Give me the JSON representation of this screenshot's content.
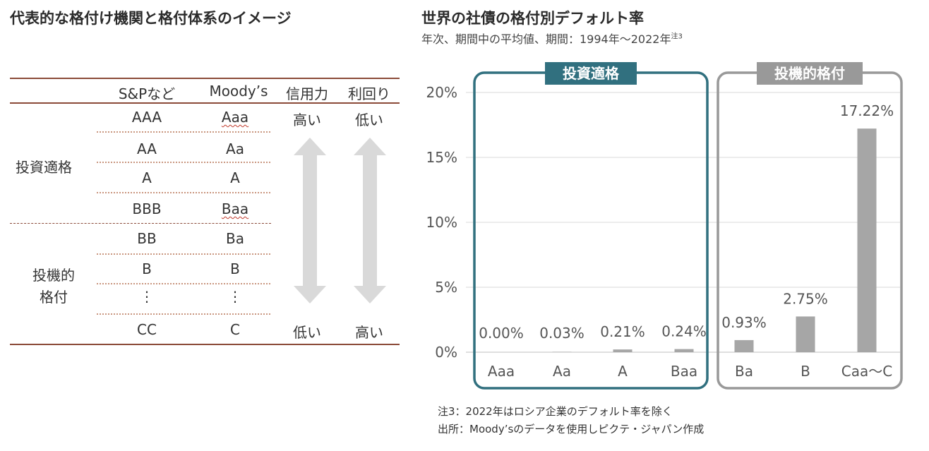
{
  "left": {
    "title": "代表的な格付け機関と格付体系のイメージ",
    "headers": {
      "sp": "S&Pなど",
      "moodys": "Moody’s",
      "credit": "信用力",
      "yield": "利回り"
    },
    "groups": {
      "investment": "投資適格",
      "speculative_1": "投機的",
      "speculative_2": "格付"
    },
    "rows": [
      {
        "sp": "AAA",
        "moodys": "Aaa"
      },
      {
        "sp": "AA",
        "moodys": "Aa"
      },
      {
        "sp": "A",
        "moodys": "A"
      },
      {
        "sp": "BBB",
        "moodys": "Baa"
      },
      {
        "sp": "BB",
        "moodys": "Ba"
      },
      {
        "sp": "B",
        "moodys": "B"
      },
      {
        "sp": "⋮",
        "moodys": "⋮"
      },
      {
        "sp": "CC",
        "moodys": "C"
      }
    ],
    "credit_top": "高い",
    "credit_bottom": "低い",
    "yield_top": "低い",
    "yield_bottom": "高い",
    "arrow_color": "#d9d9d9"
  },
  "right": {
    "title": "世界の社債の格付別デフォルト率",
    "subtitle": "年次、期間中の平均値、期間：1994年～2022年",
    "subtitle_note": "注3",
    "note1": "注3：2022年はロシア企業のデフォルト率を除く",
    "note2": "出所：Moody’sのデータを使用しピクテ・ジャパン作成"
  },
  "chart_data": {
    "type": "bar",
    "categories": [
      "Aaa",
      "Aa",
      "A",
      "Baa",
      "Ba",
      "B",
      "Caa～C"
    ],
    "values": [
      0.0,
      0.03,
      0.21,
      0.24,
      0.93,
      2.75,
      17.22
    ],
    "value_labels": [
      "0.00%",
      "0.03%",
      "0.21%",
      "0.24%",
      "0.93%",
      "2.75%",
      "17.22%"
    ],
    "yticks": [
      "0%",
      "5%",
      "10%",
      "15%",
      "20%"
    ],
    "ylim": [
      0,
      20
    ],
    "grid": true,
    "groups": [
      {
        "label": "投資適格",
        "categories": [
          "Aaa",
          "Aa",
          "A",
          "Baa"
        ],
        "color": "#31707f"
      },
      {
        "label": "投機的格付",
        "categories": [
          "Ba",
          "B",
          "Caa～C"
        ],
        "color": "#999999"
      }
    ],
    "bar_color": "#a6a6a6"
  }
}
